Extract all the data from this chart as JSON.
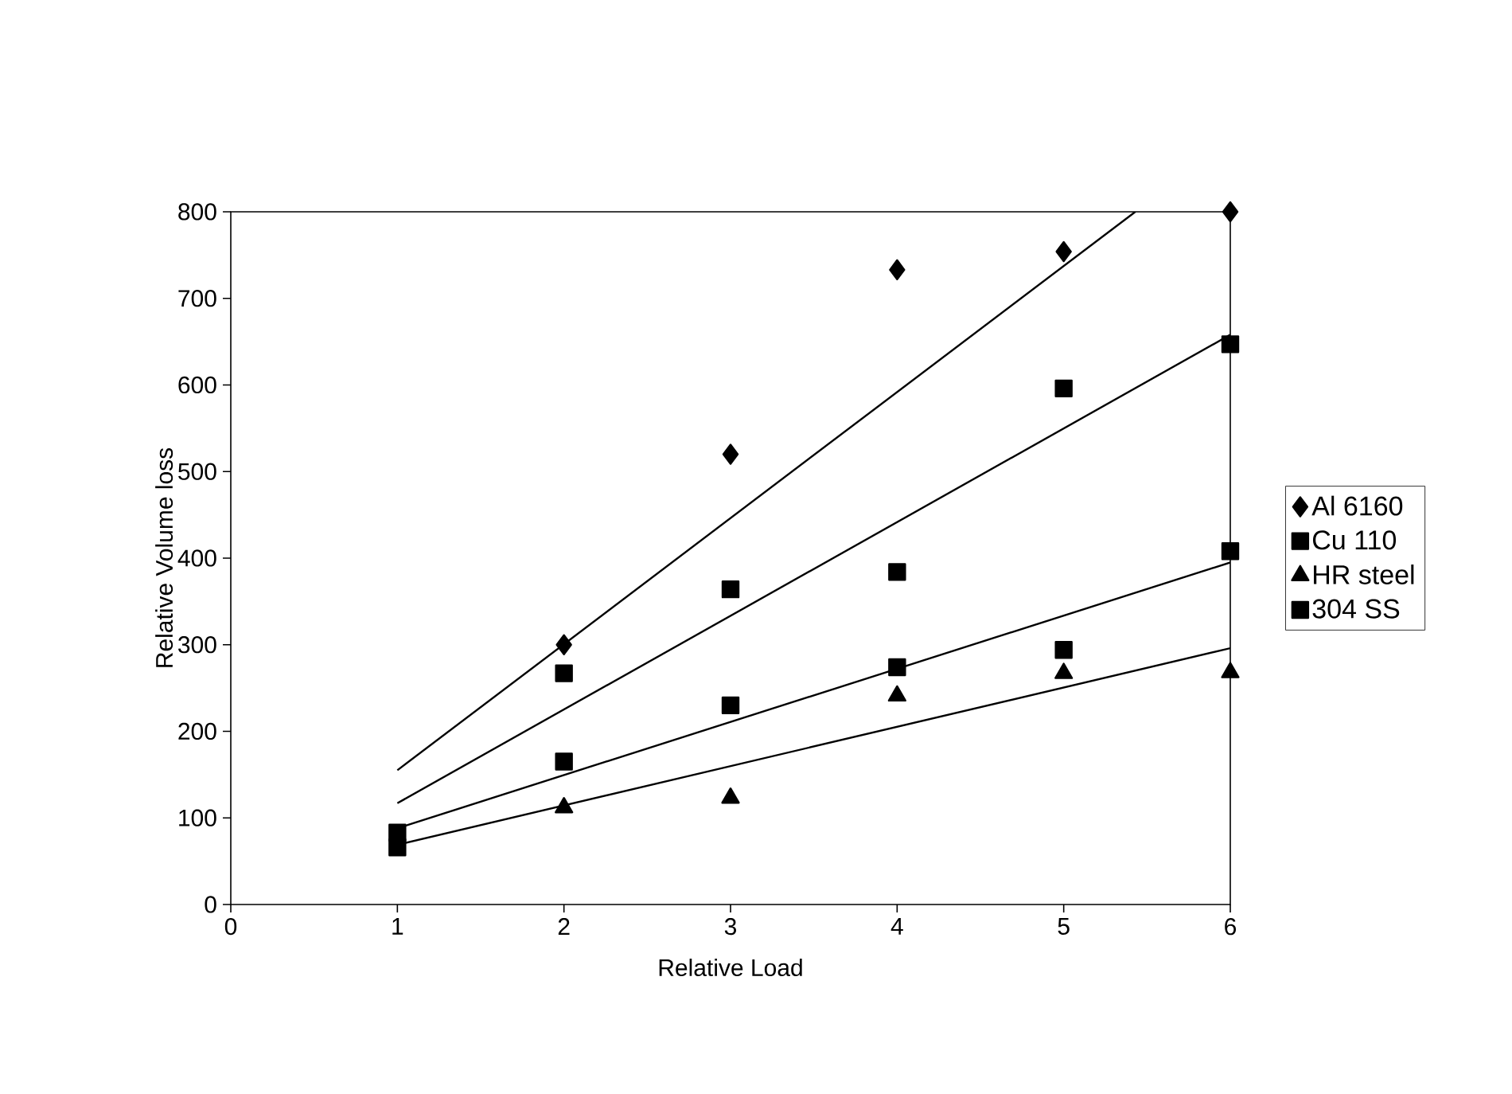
{
  "chart_data": {
    "type": "scatter",
    "xlabel": "Relative Load",
    "ylabel": "Relative Volume loss",
    "x": [
      1,
      2,
      3,
      4,
      5,
      6
    ],
    "xlim": [
      0,
      6
    ],
    "xticks": [
      0,
      1,
      2,
      3,
      4,
      5,
      6
    ],
    "ylim": [
      0,
      800
    ],
    "yticks": [
      0,
      100,
      200,
      300,
      400,
      500,
      600,
      700,
      800
    ],
    "grid": false,
    "legend": "right",
    "series": [
      {
        "name": "Al 6160",
        "color": "#000000",
        "marker": "diamond",
        "values": [
          null,
          300,
          520,
          733,
          754,
          800
        ]
      },
      {
        "name": "Cu 110",
        "color": "#000000",
        "marker": "square",
        "values": [
          83,
          267,
          364,
          384,
          596,
          647
        ]
      },
      {
        "name": "HR steel",
        "color": "#000000",
        "marker": "triangle",
        "values": [
          null,
          112,
          123,
          241,
          267,
          268
        ]
      },
      {
        "name": "304 SS",
        "color": "#000000",
        "marker": "square",
        "values": [
          66,
          165,
          230,
          274,
          294,
          408
        ]
      },
      {
        "type": "line",
        "color": "#000000",
        "marker": "none",
        "x": [
          1,
          5.43
        ],
        "values": [
          155,
          800
        ]
      },
      {
        "type": "line",
        "color": "#000000",
        "marker": "none",
        "x": [
          1,
          6
        ],
        "values": [
          117,
          658
        ]
      },
      {
        "type": "line",
        "color": "#000000",
        "marker": "none",
        "x": [
          1,
          6
        ],
        "values": [
          88,
          395
        ]
      },
      {
        "type": "line",
        "color": "#000000",
        "marker": "none",
        "x": [
          1,
          6
        ],
        "values": [
          69,
          296
        ]
      }
    ]
  }
}
